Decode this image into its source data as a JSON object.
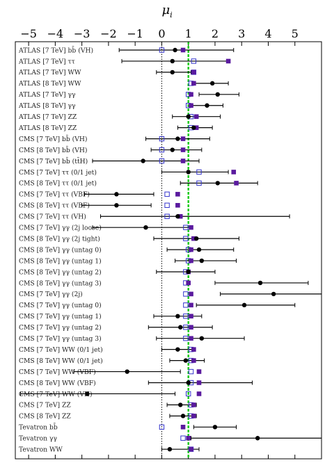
{
  "chart_data": {
    "type": "scatter",
    "title": "",
    "xlabel": "μ_i",
    "ylabel": "",
    "xlim": [
      -5.5,
      6.0
    ],
    "xticks": [
      -5,
      -4,
      -3,
      -2,
      -1,
      0,
      1,
      2,
      3,
      4,
      5
    ],
    "reference_lines": [
      {
        "x": 0,
        "style": "dotted",
        "color": "#000000"
      },
      {
        "x": 1,
        "style": "dashed",
        "color": "#22cc22"
      }
    ],
    "marker_colors": {
      "best_fit": "#000000",
      "sm_expected": "#3333cc",
      "alt_model": "#5a1a9e"
    },
    "labels": [
      "ATLAS [7 TeV] bb̄ (VH)",
      "ATLAS [7 TeV] ττ",
      "ATLAS [7 TeV] WW",
      "ATLAS [8 TeV] WW",
      "ATLAS [7 TeV] γγ",
      "ATLAS [8 TeV] γγ",
      "ATLAS [7 TeV] ZZ",
      "ATLAS [8 TeV] ZZ",
      "CMS [7 TeV] bb̄ (VH)",
      "CMS [8 TeV] bb̄ (VH)",
      "CMS [7 TeV] bb̄ (tt̄H)",
      "CMS [7 TeV] ττ (0/1 jet)",
      "CMS [8 TeV] ττ (0/1 jet)",
      "CMS [7 TeV] ττ (VBF)",
      "CMS [8 TeV] ττ (VBF)",
      "CMS [7 TeV] ττ (VH)",
      "CMS [7 TeV] γγ (2j loose)",
      "CMS [8 TeV] γγ (2j tight)",
      "CMS [8 TeV] γγ (untag 0)",
      "CMS [8 TeV] γγ (untag 1)",
      "CMS [8 TeV] γγ (untag 2)",
      "CMS [8 TeV] γγ (untag 3)",
      "CMS [7 TeV] γγ (2j)",
      "CMS [7 TeV] γγ (untag 0)",
      "CMS [7 TeV] γγ (untag 1)",
      "CMS [7 TeV] γγ (untag 2)",
      "CMS [7 TeV] γγ (untag 3)",
      "CMS [7 TeV] WW (0/1 jet)",
      "CMS [8 TeV] WW (0/1 jet)",
      "CMS [7 TeV] WW (VBF)",
      "CMS [8 TeV] WW (VBF)",
      "CMS [7 TeV] WW (VH)",
      "CMS [7 TeV] ZZ",
      "CMS [8 TeV] ZZ",
      "Tevatron bb̄",
      "Tevatron γγ",
      "Tevatron WW"
    ],
    "series": [
      {
        "marker": "filled-circle",
        "values": [
          0.5,
          0.4,
          0.4,
          1.9,
          2.1,
          1.7,
          1.0,
          1.2,
          0.6,
          0.4,
          -0.7,
          1.0,
          2.1,
          -1.7,
          -1.7,
          0.6,
          -0.6,
          1.3,
          1.4,
          1.5,
          1.0,
          3.7,
          4.2,
          3.1,
          0.6,
          0.7,
          1.5,
          0.6,
          0.9,
          -1.3,
          1.0,
          -2.8,
          0.7,
          0.8,
          2.0,
          3.6,
          0.3
        ],
        "err_lo": [
          2.1,
          1.9,
          0.6,
          0.7,
          0.7,
          0.6,
          0.6,
          0.6,
          1.2,
          0.8,
          1.9,
          1.0,
          1.4,
          1.2,
          1.3,
          2.9,
          2.0,
          1.6,
          1.2,
          1.0,
          1.2,
          1.7,
          2.0,
          1.8,
          0.9,
          1.2,
          1.7,
          0.6,
          0.6,
          2.0,
          1.5,
          2.5,
          0.5,
          0.5,
          0.8,
          2.5,
          0.3
        ],
        "err_hi": [
          2.2,
          2.1,
          0.7,
          0.6,
          0.8,
          0.6,
          1.2,
          0.7,
          1.2,
          1.1,
          2.1,
          1.5,
          1.5,
          1.4,
          1.3,
          4.2,
          1.7,
          1.6,
          1.3,
          1.3,
          1.0,
          1.8,
          2.0,
          1.9,
          0.9,
          1.2,
          1.6,
          0.6,
          0.7,
          2.0,
          2.4,
          3.3,
          0.6,
          0.5,
          0.8,
          2.5,
          1.1
        ]
      },
      {
        "marker": "open-square",
        "values": [
          0.0,
          1.2,
          1.2,
          1.1,
          1.0,
          1.0,
          1.1,
          1.1,
          0.0,
          0.0,
          0.0,
          1.4,
          1.4,
          0.2,
          0.2,
          0.2,
          0.9,
          0.9,
          1.0,
          1.0,
          0.9,
          0.9,
          0.9,
          0.9,
          0.9,
          0.9,
          0.9,
          1.1,
          1.1,
          1.1,
          1.1,
          1.0,
          1.1,
          1.1,
          0.0,
          0.8,
          1.1
        ]
      },
      {
        "marker": "filled-square",
        "values": [
          0.8,
          2.5,
          1.2,
          1.2,
          1.1,
          1.1,
          1.3,
          1.3,
          0.8,
          0.8,
          0.8,
          2.7,
          2.8,
          0.6,
          0.6,
          0.7,
          1.1,
          1.2,
          1.1,
          1.1,
          1.0,
          1.0,
          1.1,
          1.1,
          1.1,
          1.1,
          1.1,
          1.2,
          1.2,
          1.4,
          1.4,
          1.4,
          1.2,
          1.2,
          0.8,
          1.0,
          1.1
        ]
      }
    ]
  }
}
